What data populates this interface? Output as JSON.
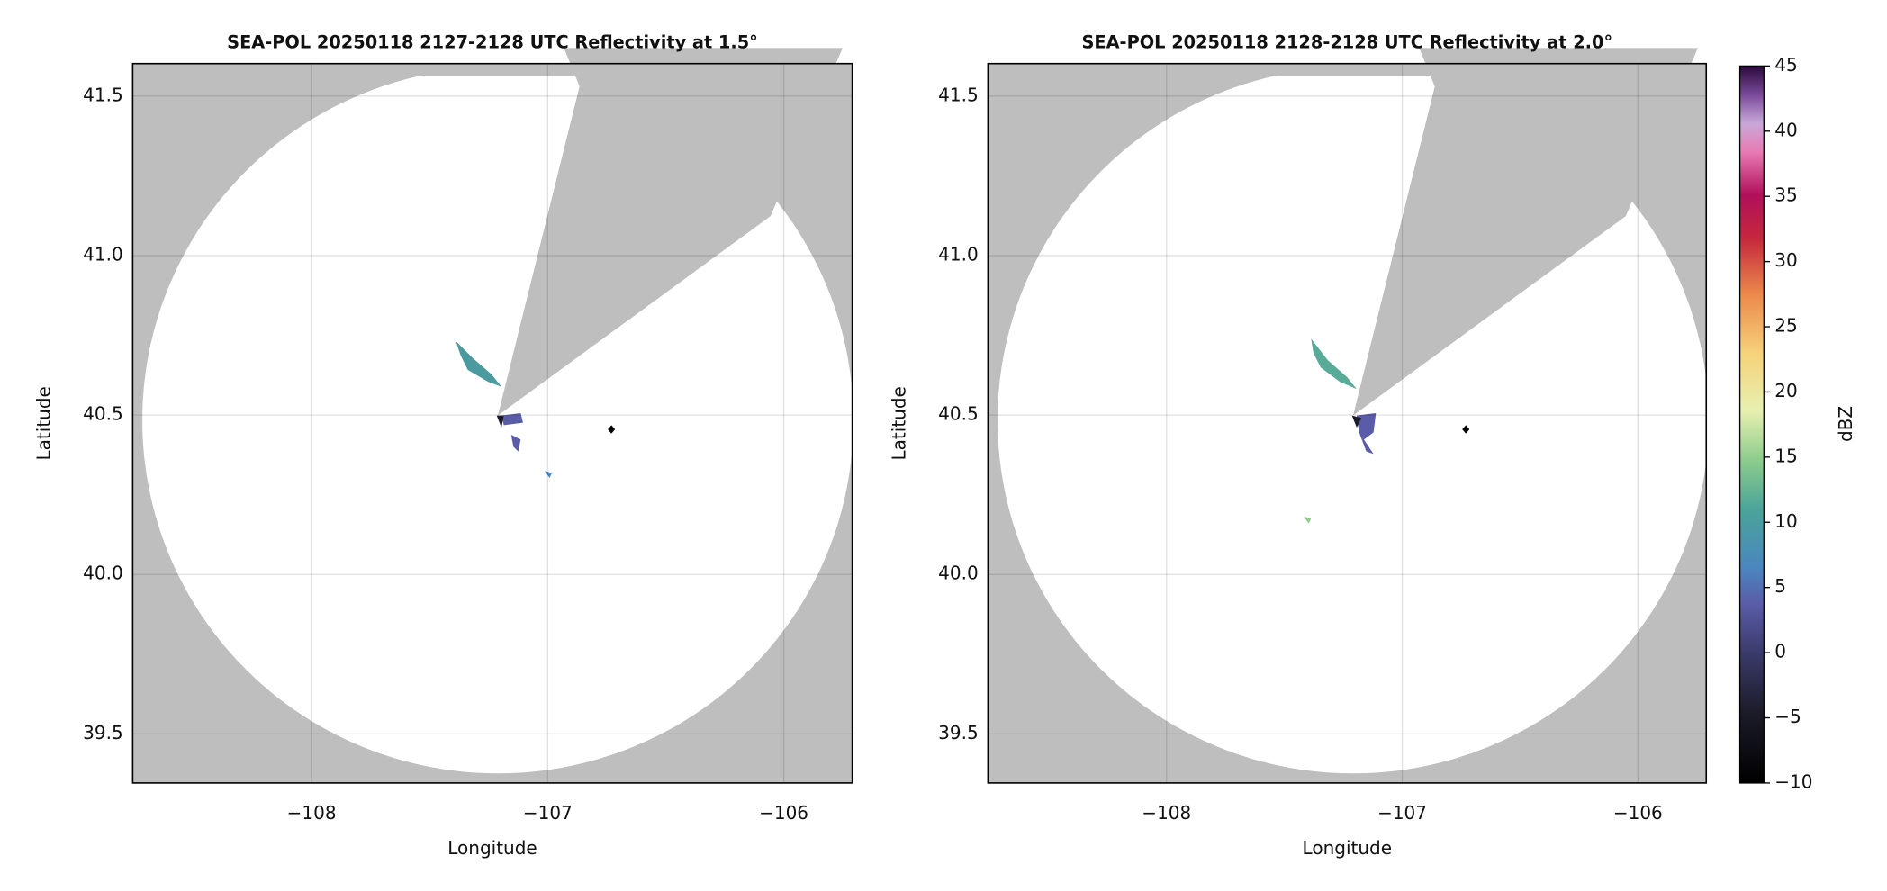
{
  "chart_data": [
    {
      "type": "radar",
      "title": "SEA-POL 20250118 2127-2128 UTC Reflectivity at 1.5°",
      "xlabel": "Longitude",
      "ylabel": "Latitude",
      "xlim": [
        -108.758,
        -105.71
      ],
      "ylim": [
        39.346,
        41.602
      ],
      "xticks": [
        {
          "value": -108,
          "label": "−108"
        },
        {
          "value": -107,
          "label": "−107"
        },
        {
          "value": -106,
          "label": "−106"
        }
      ],
      "yticks": [
        {
          "value": 39.5,
          "label": "39.5"
        },
        {
          "value": 40.0,
          "label": "40.0"
        },
        {
          "value": 40.5,
          "label": "40.5"
        },
        {
          "value": 41.0,
          "label": "41.0"
        },
        {
          "value": 41.5,
          "label": "41.5"
        }
      ],
      "grid": true,
      "markers": {
        "x": [
          -106.73
        ],
        "y": [
          40.455
        ],
        "color": "#000000"
      }
    },
    {
      "type": "radar",
      "title": "SEA-POL 20250118 2128-2128 UTC Reflectivity at 2.0°",
      "xlabel": "Longitude",
      "ylabel": "Latitude",
      "xlim": [
        -108.758,
        -105.71
      ],
      "ylim": [
        39.346,
        41.602
      ],
      "xticks": [
        {
          "value": -108,
          "label": "−108"
        },
        {
          "value": -107,
          "label": "−107"
        },
        {
          "value": -106,
          "label": "−106"
        }
      ],
      "yticks": [
        {
          "value": 39.5,
          "label": "39.5"
        },
        {
          "value": 40.0,
          "label": "40.0"
        },
        {
          "value": 40.5,
          "label": "40.5"
        },
        {
          "value": 41.0,
          "label": "41.0"
        },
        {
          "value": 41.5,
          "label": "41.5"
        }
      ],
      "grid": true,
      "markers": {
        "x": [
          -106.73
        ],
        "y": [
          40.455
        ],
        "color": "#000000"
      }
    }
  ],
  "colorbar": {
    "label": "dBZ",
    "lim": [
      -10,
      45
    ],
    "ticks": [
      {
        "value": -10,
        "label": "−10"
      },
      {
        "value": -5,
        "label": "−5"
      },
      0,
      5,
      10,
      15,
      20,
      25,
      30,
      35,
      40,
      45
    ]
  }
}
